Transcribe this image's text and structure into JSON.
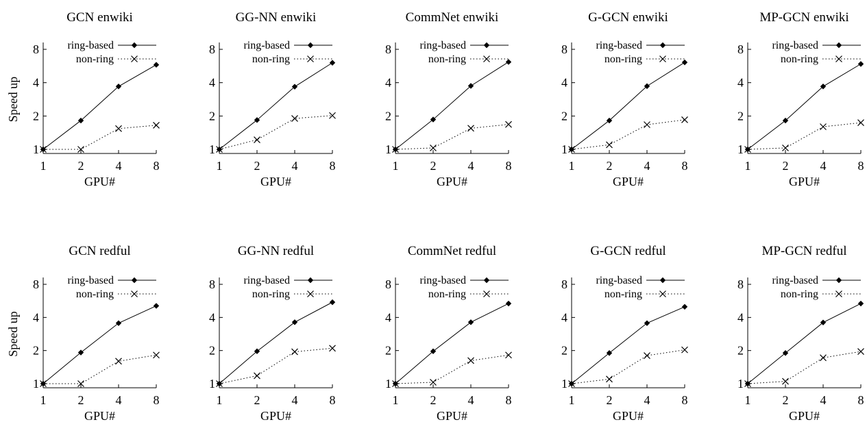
{
  "figure": {
    "x_label": "GPU#",
    "y_label": "Speed up",
    "legend": {
      "ring": "ring-based",
      "nonring": "non-ring"
    }
  },
  "chart_data": [
    {
      "type": "line",
      "title": "GCN enwiki",
      "x": [
        1,
        2,
        4,
        8
      ],
      "xlabel": "GPU#",
      "ylabel": "Speed up",
      "yscale": "log2",
      "ylim": [
        1,
        8
      ],
      "yticks": [
        1,
        2,
        4,
        8
      ],
      "series": [
        {
          "name": "ring-based",
          "values": [
            1,
            1.82,
            3.7,
            5.8
          ]
        },
        {
          "name": "non-ring",
          "values": [
            1,
            1.0,
            1.54,
            1.65
          ]
        }
      ]
    },
    {
      "type": "line",
      "title": "GG-NN enwiki",
      "x": [
        1,
        2,
        4,
        8
      ],
      "xlabel": "GPU#",
      "ylabel": "",
      "yscale": "log2",
      "ylim": [
        1,
        8
      ],
      "yticks": [
        1,
        2,
        4,
        8
      ],
      "series": [
        {
          "name": "ring-based",
          "values": [
            1,
            1.84,
            3.68,
            6.05
          ]
        },
        {
          "name": "non-ring",
          "values": [
            1,
            1.22,
            1.9,
            2.02
          ]
        }
      ]
    },
    {
      "type": "line",
      "title": "CommNet enwiki",
      "x": [
        1,
        2,
        4,
        8
      ],
      "xlabel": "GPU#",
      "ylabel": "",
      "yscale": "log2",
      "ylim": [
        1,
        8
      ],
      "yticks": [
        1,
        2,
        4,
        8
      ],
      "series": [
        {
          "name": "ring-based",
          "values": [
            1,
            1.86,
            3.74,
            6.15
          ]
        },
        {
          "name": "non-ring",
          "values": [
            1,
            1.03,
            1.55,
            1.68
          ]
        }
      ]
    },
    {
      "type": "line",
      "title": "G-GCN enwiki",
      "x": [
        1,
        2,
        4,
        8
      ],
      "xlabel": "GPU#",
      "ylabel": "",
      "yscale": "log2",
      "ylim": [
        1,
        8
      ],
      "yticks": [
        1,
        2,
        4,
        8
      ],
      "series": [
        {
          "name": "ring-based",
          "values": [
            1,
            1.82,
            3.72,
            6.1
          ]
        },
        {
          "name": "non-ring",
          "values": [
            1,
            1.1,
            1.67,
            1.85
          ]
        }
      ]
    },
    {
      "type": "line",
      "title": "MP-GCN enwiki",
      "x": [
        1,
        2,
        4,
        8
      ],
      "xlabel": "GPU#",
      "ylabel": "",
      "yscale": "log2",
      "ylim": [
        1,
        8
      ],
      "yticks": [
        1,
        2,
        4,
        8
      ],
      "series": [
        {
          "name": "ring-based",
          "values": [
            1,
            1.82,
            3.7,
            5.9
          ]
        },
        {
          "name": "non-ring",
          "values": [
            1,
            1.03,
            1.6,
            1.74
          ]
        }
      ]
    },
    {
      "type": "line",
      "title": "GCN redful",
      "x": [
        1,
        2,
        4,
        8
      ],
      "xlabel": "GPU#",
      "ylabel": "Speed up",
      "yscale": "log2",
      "ylim": [
        1,
        8
      ],
      "yticks": [
        1,
        2,
        4,
        8
      ],
      "series": [
        {
          "name": "ring-based",
          "values": [
            1,
            1.92,
            3.55,
            5.1
          ]
        },
        {
          "name": "non-ring",
          "values": [
            1,
            1.0,
            1.6,
            1.82
          ]
        }
      ]
    },
    {
      "type": "line",
      "title": "GG-NN redful",
      "x": [
        1,
        2,
        4,
        8
      ],
      "xlabel": "GPU#",
      "ylabel": "",
      "yscale": "log2",
      "ylim": [
        1,
        8
      ],
      "yticks": [
        1,
        2,
        4,
        8
      ],
      "series": [
        {
          "name": "ring-based",
          "values": [
            1,
            1.97,
            3.62,
            5.5
          ]
        },
        {
          "name": "non-ring",
          "values": [
            1,
            1.18,
            1.95,
            2.1
          ]
        }
      ]
    },
    {
      "type": "line",
      "title": "CommNet redful",
      "x": [
        1,
        2,
        4,
        8
      ],
      "xlabel": "GPU#",
      "ylabel": "",
      "yscale": "log2",
      "ylim": [
        1,
        8
      ],
      "yticks": [
        1,
        2,
        4,
        8
      ],
      "series": [
        {
          "name": "ring-based",
          "values": [
            1,
            1.97,
            3.62,
            5.35
          ]
        },
        {
          "name": "non-ring",
          "values": [
            1,
            1.03,
            1.62,
            1.82
          ]
        }
      ]
    },
    {
      "type": "line",
      "title": "G-GCN redful",
      "x": [
        1,
        2,
        4,
        8
      ],
      "xlabel": "GPU#",
      "ylabel": "",
      "yscale": "log2",
      "ylim": [
        1,
        8
      ],
      "yticks": [
        1,
        2,
        4,
        8
      ],
      "series": [
        {
          "name": "ring-based",
          "values": [
            1,
            1.9,
            3.55,
            5.0
          ]
        },
        {
          "name": "non-ring",
          "values": [
            1,
            1.1,
            1.8,
            2.03
          ]
        }
      ]
    },
    {
      "type": "line",
      "title": "MP-GCN redful",
      "x": [
        1,
        2,
        4,
        8
      ],
      "xlabel": "GPU#",
      "ylabel": "",
      "yscale": "log2",
      "ylim": [
        1,
        8
      ],
      "yticks": [
        1,
        2,
        4,
        8
      ],
      "series": [
        {
          "name": "ring-based",
          "values": [
            1,
            1.9,
            3.6,
            5.35
          ]
        },
        {
          "name": "non-ring",
          "values": [
            1,
            1.05,
            1.72,
            1.96
          ]
        }
      ]
    }
  ]
}
